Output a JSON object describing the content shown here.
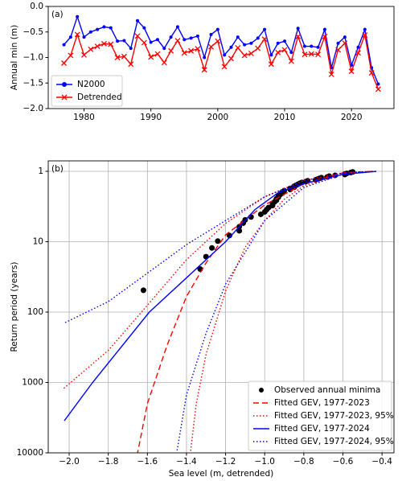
{
  "chart_data": [
    {
      "type": "line",
      "label": "(a)",
      "ylabel": "Annual min (m)",
      "x": [
        1977,
        1978,
        1979,
        1980,
        1981,
        1982,
        1983,
        1984,
        1985,
        1986,
        1987,
        1988,
        1989,
        1990,
        1991,
        1992,
        1993,
        1994,
        1995,
        1996,
        1997,
        1998,
        1999,
        2000,
        2001,
        2002,
        2003,
        2004,
        2005,
        2006,
        2007,
        2008,
        2009,
        2010,
        2011,
        2012,
        2013,
        2014,
        2015,
        2016,
        2017,
        2018,
        2019,
        2020,
        2021,
        2022,
        2023,
        2024
      ],
      "series": [
        {
          "name": "N2000",
          "color": "#0000ff",
          "marker": "o",
          "linestyle": "solid",
          "values": [
            -0.75,
            -0.6,
            -0.2,
            -0.6,
            -0.5,
            -0.45,
            -0.4,
            -0.42,
            -0.68,
            -0.67,
            -0.82,
            -0.28,
            -0.42,
            -0.7,
            -0.65,
            -0.82,
            -0.6,
            -0.4,
            -0.65,
            -0.62,
            -0.58,
            -1.0,
            -0.55,
            -0.45,
            -0.95,
            -0.8,
            -0.6,
            -0.75,
            -0.72,
            -0.62,
            -0.45,
            -0.95,
            -0.72,
            -0.68,
            -0.9,
            -0.43,
            -0.78,
            -0.78,
            -0.8,
            -0.45,
            -1.2,
            -0.72,
            -0.6,
            -1.15,
            -0.8,
            -0.45,
            -1.2,
            -1.52
          ]
        },
        {
          "name": "Detrended",
          "color": "#ff0000",
          "marker": "x",
          "linestyle": "solid",
          "values": [
            -1.11,
            -0.96,
            -0.55,
            -0.95,
            -0.84,
            -0.78,
            -0.73,
            -0.74,
            -1.0,
            -0.98,
            -1.13,
            -0.58,
            -0.71,
            -0.99,
            -0.93,
            -1.1,
            -0.87,
            -0.67,
            -0.91,
            -0.87,
            -0.83,
            -1.24,
            -0.79,
            -0.68,
            -1.18,
            -1.02,
            -0.81,
            -0.96,
            -0.92,
            -0.82,
            -0.64,
            -1.13,
            -0.9,
            -0.85,
            -1.07,
            -0.59,
            -0.94,
            -0.93,
            -0.94,
            -0.59,
            -1.33,
            -0.85,
            -0.72,
            -1.27,
            -0.91,
            -0.56,
            -1.3,
            -1.62
          ]
        }
      ],
      "xlim": [
        1974.65,
        2026.35
      ],
      "xticks": [
        1980,
        1990,
        2000,
        2010,
        2020
      ],
      "ylim": [
        -2,
        0
      ],
      "yticks": [
        {
          "value": -2,
          "label": "−2.0"
        },
        {
          "value": -1.5,
          "label": "−1.5"
        },
        {
          "value": -1,
          "label": "−1.0"
        },
        {
          "value": -0.5,
          "label": "−0.5"
        },
        {
          "value": 0,
          "label": "0.0"
        }
      ],
      "grid": false,
      "legend": "lower left"
    },
    {
      "type": "line",
      "label": "(b)",
      "xlabel": "Sea level (m, detrended)",
      "ylabel": "Return period (years)",
      "series": [
        {
          "name": "Observed annual minima",
          "color": "#000000",
          "marker": "o",
          "linestyle": "none",
          "x": [
            -1.62,
            -1.33,
            -1.3,
            -1.27,
            -1.24,
            -1.18,
            -1.13,
            -1.13,
            -1.11,
            -1.1,
            -1.07,
            -1.02,
            -1.0,
            -0.99,
            -0.98,
            -0.96,
            -0.96,
            -0.95,
            -0.94,
            -0.94,
            -0.93,
            -0.93,
            -0.92,
            -0.91,
            -0.91,
            -0.9,
            -0.87,
            -0.87,
            -0.85,
            -0.85,
            -0.84,
            -0.83,
            -0.82,
            -0.81,
            -0.79,
            -0.78,
            -0.74,
            -0.73,
            -0.72,
            -0.71,
            -0.68,
            -0.67,
            -0.64,
            -0.59,
            -0.59,
            -0.58,
            -0.56,
            -0.55
          ],
          "values": [
            49,
            24.5,
            16.33,
            12.25,
            9.8,
            8.17,
            7,
            6.13,
            5.44,
            4.9,
            4.45,
            4.08,
            3.77,
            3.5,
            3.27,
            3.06,
            2.88,
            2.72,
            2.58,
            2.45,
            2.33,
            2.23,
            2.13,
            2.04,
            1.96,
            1.88,
            1.81,
            1.75,
            1.69,
            1.63,
            1.58,
            1.53,
            1.48,
            1.44,
            1.4,
            1.36,
            1.32,
            1.29,
            1.26,
            1.23,
            1.2,
            1.17,
            1.14,
            1.11,
            1.09,
            1.07,
            1.04,
            1.02
          ]
        },
        {
          "name": "Fitted GEV, 1977-2023",
          "color": "#ff0000",
          "linestyle": "dashed",
          "x": [
            -0.45,
            -0.6,
            -0.8,
            -1.0,
            -1.2,
            -1.3,
            -1.4,
            -1.5,
            -1.6,
            -1.65
          ],
          "values": [
            1,
            1.05,
            1.5,
            3,
            8,
            20,
            60,
            300,
            2000,
            10000
          ]
        },
        {
          "name": "Fitted GEV, 1977-2023, 95%",
          "color": "#ff0000",
          "linestyle": "dotted",
          "x": [
            -0.45,
            -0.6,
            -0.8,
            -1.0,
            -1.2,
            -1.4,
            -1.6,
            -1.8,
            -2.03
          ],
          "values": [
            1,
            1.05,
            1.35,
            2.3,
            5.5,
            18,
            80,
            350,
            1230
          ]
        },
        {
          "name": null,
          "color": "#ff0000",
          "linestyle": "dotted",
          "x": [
            -0.45,
            -0.6,
            -0.8,
            -0.9,
            -1.0,
            -1.1,
            -1.2,
            -1.3,
            -1.35,
            -1.38
          ],
          "values": [
            1,
            1.1,
            1.6,
            2.5,
            5,
            12,
            50,
            400,
            2000,
            10000
          ]
        },
        {
          "name": "Fitted GEV, 1977-2024",
          "color": "#0000ff",
          "linestyle": "solid",
          "x": [
            -0.43,
            -0.6,
            -0.8,
            -0.93,
            -1.05,
            -1.2,
            -1.59,
            -1.88,
            -2.025
          ],
          "values": [
            1,
            1.1,
            1.5,
            2,
            3.5,
            10,
            100,
            1000,
            3500
          ]
        },
        {
          "name": "Fitted GEV, 1977-2024, 95%",
          "color": "#0000ff",
          "linestyle": "dotted",
          "x": [
            -0.43,
            -0.6,
            -0.8,
            -1.0,
            -1.2,
            -1.4,
            -1.6,
            -1.8,
            -2.03
          ],
          "values": [
            1,
            1.05,
            1.37,
            2.3,
            5,
            11,
            28,
            71,
            145
          ]
        },
        {
          "name": null,
          "color": "#0000ff",
          "linestyle": "dotted",
          "x": [
            -0.43,
            -0.6,
            -0.8,
            -1.0,
            -1.2,
            -1.3,
            -1.4,
            -1.45
          ],
          "values": [
            1,
            1.1,
            1.7,
            5,
            40,
            200,
            1500,
            10000
          ]
        }
      ],
      "xlim": [
        -2.107,
        -0.339
      ],
      "xticks": [
        {
          "value": -2,
          "label": "−2.0"
        },
        {
          "value": -1.8,
          "label": "−1.8"
        },
        {
          "value": -1.6,
          "label": "−1.6"
        },
        {
          "value": -1.4,
          "label": "−1.4"
        },
        {
          "value": -1.2,
          "label": "−1.2"
        },
        {
          "value": -1,
          "label": "−1.0"
        },
        {
          "value": -0.8,
          "label": "−0.8"
        },
        {
          "value": -0.6,
          "label": "−0.6"
        },
        {
          "value": -0.4,
          "label": "−0.4"
        }
      ],
      "ylim": [
        0.71,
        10000
      ],
      "ylog": true,
      "yinvert": true,
      "yticks": [
        1,
        10,
        100,
        1000,
        10000
      ],
      "grid": true,
      "legend": "lower right"
    }
  ]
}
